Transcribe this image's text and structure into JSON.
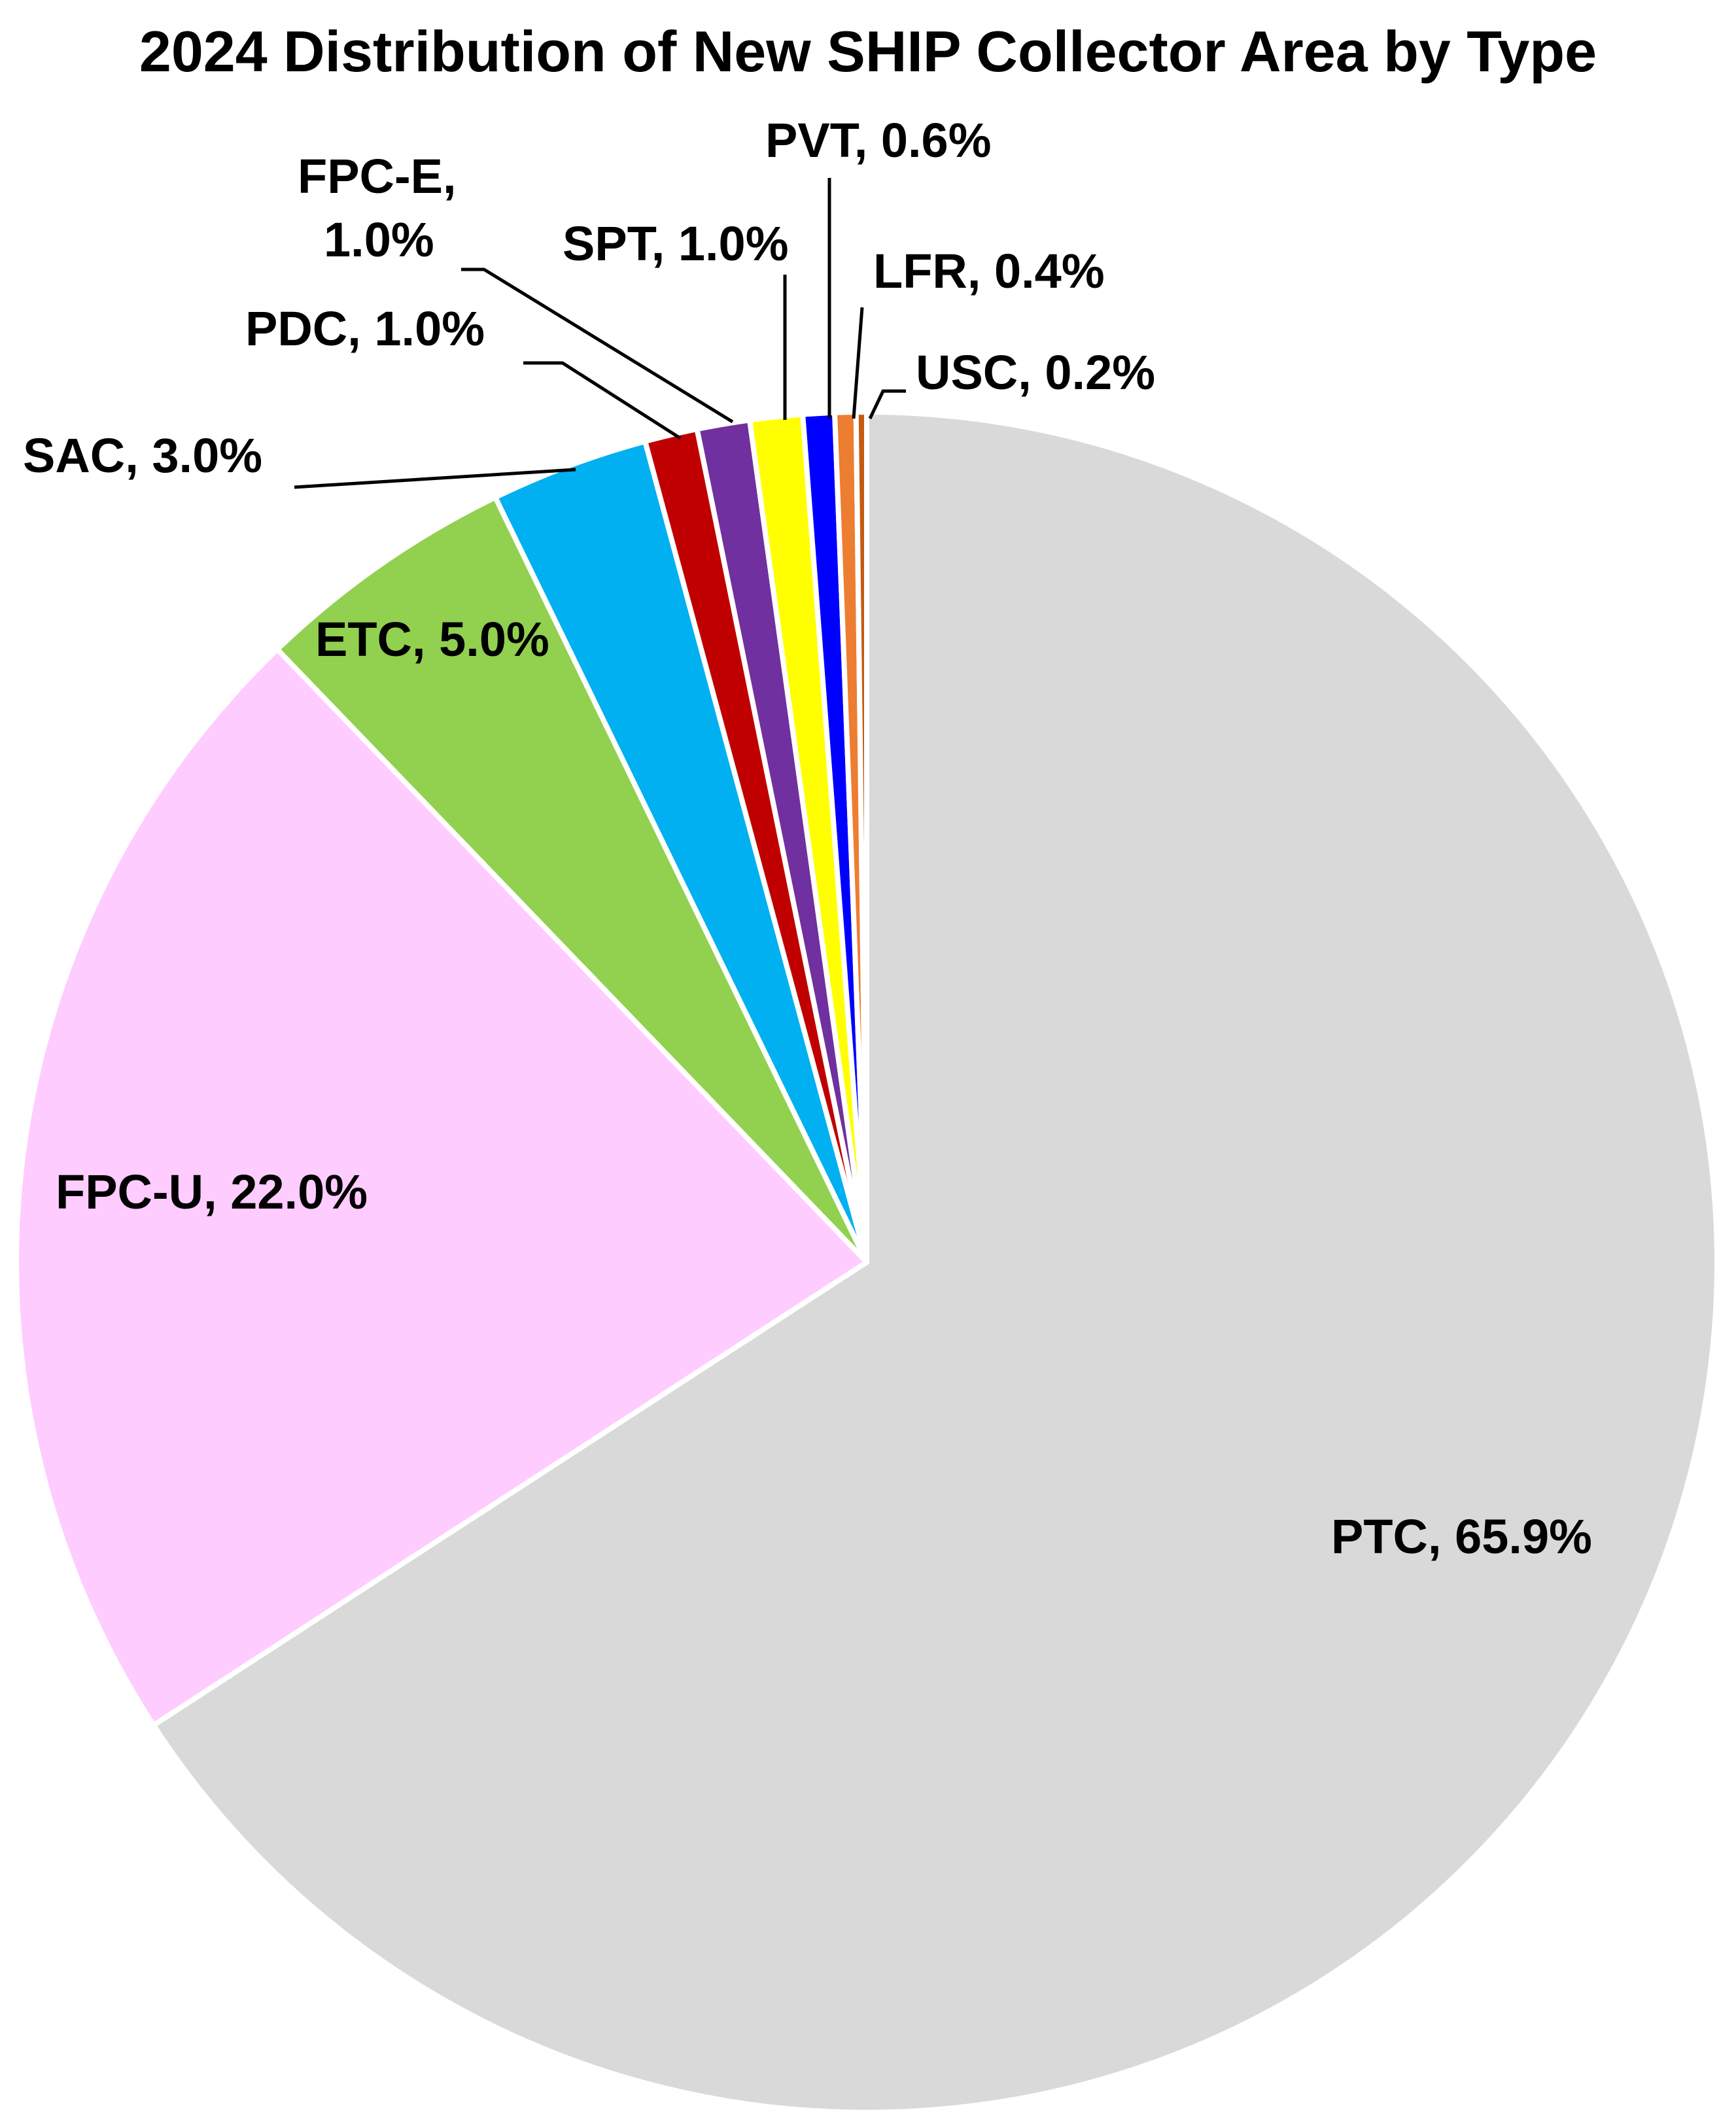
{
  "chart_data": {
    "type": "pie",
    "title": "2024 Distribution of New SHIP Collector Area by Type",
    "slices": [
      {
        "label": "PTC",
        "display": "PTC, 65.9%",
        "value": 65.9,
        "color": "#d9d9d9"
      },
      {
        "label": "FPC-U",
        "display": "FPC-U, 22.0%",
        "value": 22.0,
        "color": "#ffccff"
      },
      {
        "label": "ETC",
        "display": "ETC, 5.0%",
        "value": 5.0,
        "color": "#92d050"
      },
      {
        "label": "SAC",
        "display": "SAC, 3.0%",
        "value": 3.0,
        "color": "#00b0f0"
      },
      {
        "label": "PDC",
        "display": "PDC, 1.0%",
        "value": 1.0,
        "color": "#c00000"
      },
      {
        "label": "FPC-E",
        "display": [
          "FPC-E,",
          "1.0%"
        ],
        "value": 1.0,
        "color": "#7030a0"
      },
      {
        "label": "SPT",
        "display": "SPT, 1.0%",
        "value": 1.0,
        "color": "#ffff00"
      },
      {
        "label": "PVT",
        "display": "PVT, 0.6%",
        "value": 0.6,
        "color": "#0000ff"
      },
      {
        "label": "LFR",
        "display": "LFR, 0.4%",
        "value": 0.4,
        "color": "#ed7d31"
      },
      {
        "label": "USC",
        "display": "USC, 0.2%",
        "value": 0.2,
        "color": "#c55a11"
      }
    ],
    "start_angle": "12 o'clock",
    "direction": "clockwise",
    "legend": "none",
    "slice_border_color": "#ffffff"
  }
}
